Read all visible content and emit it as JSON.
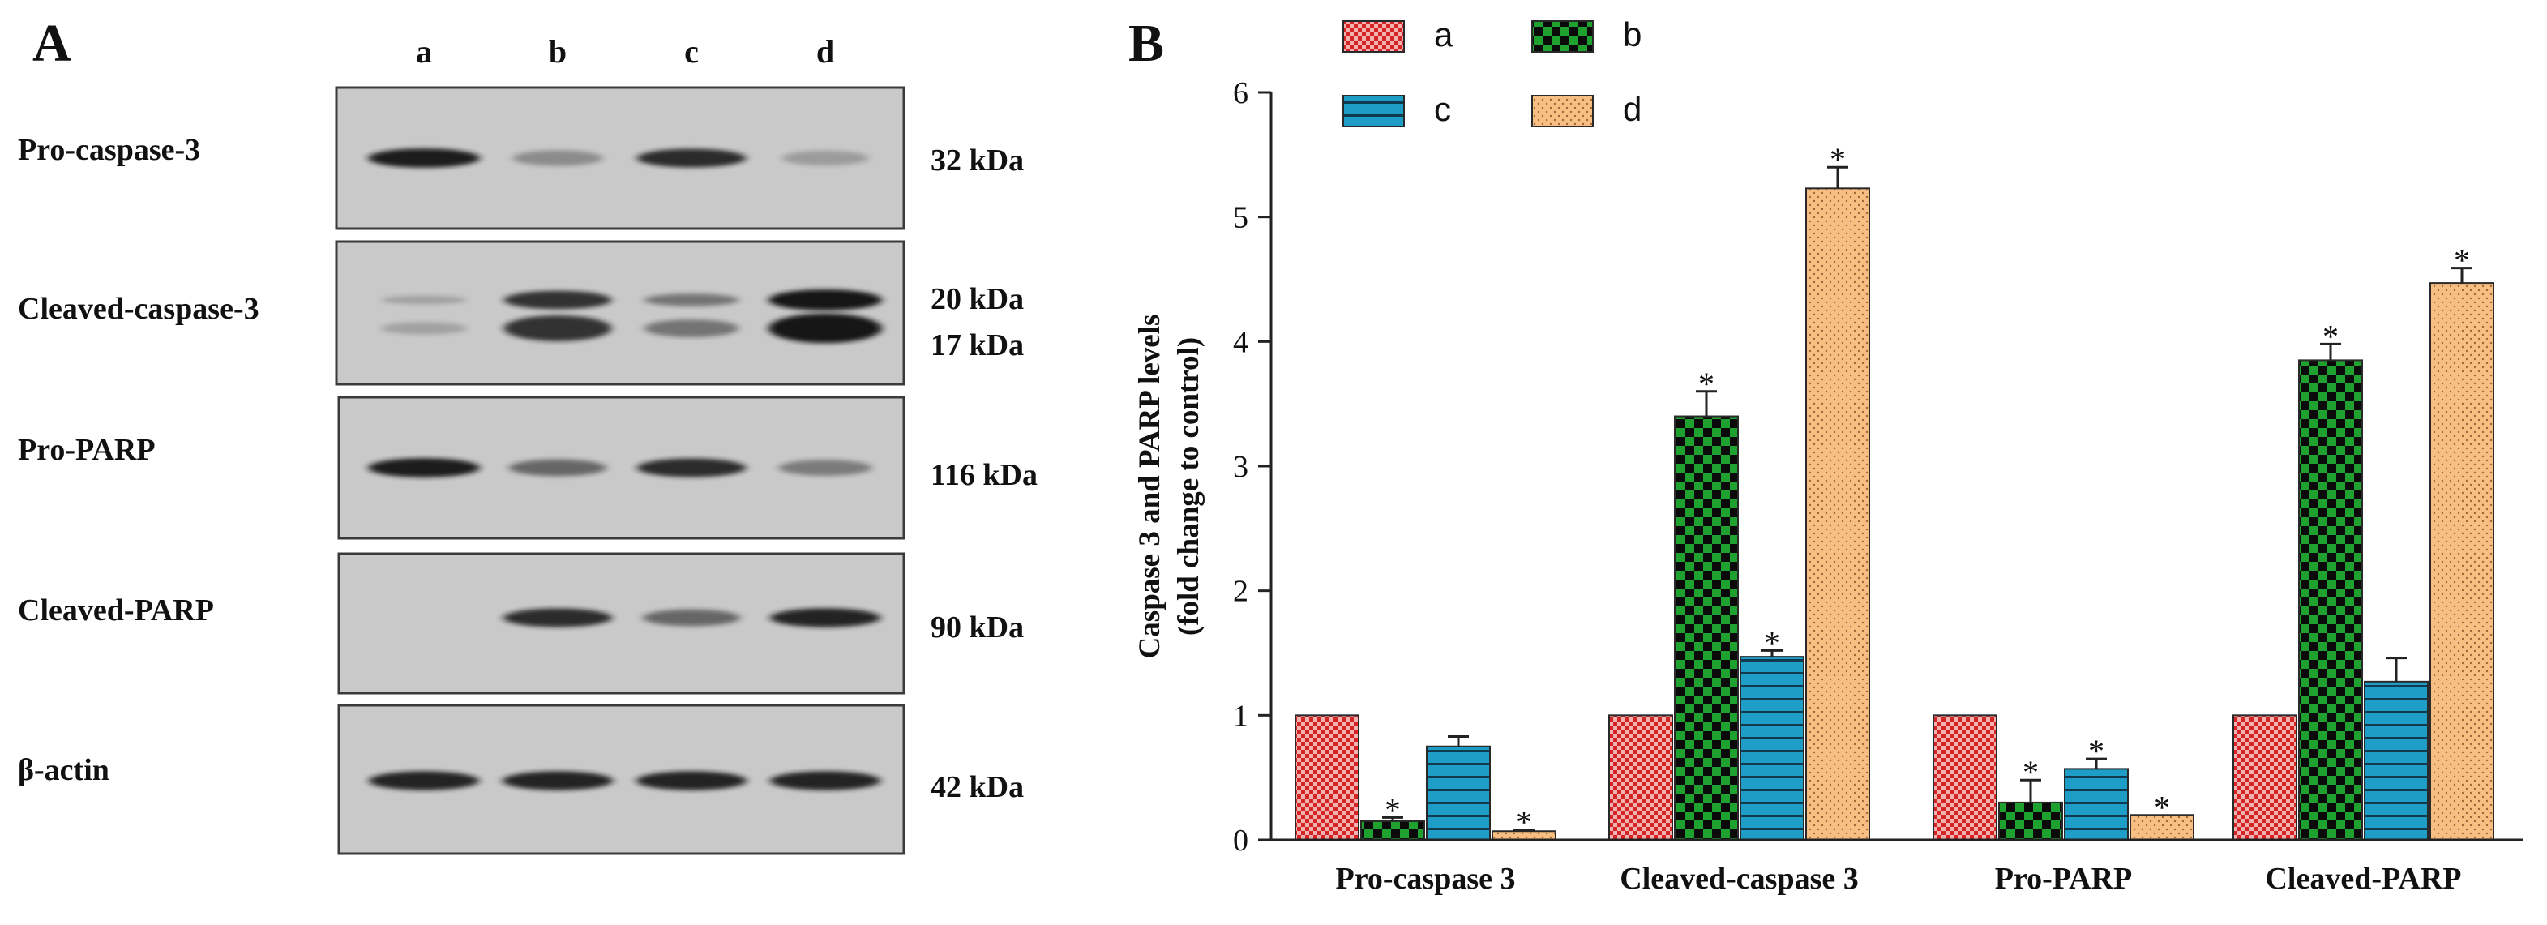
{
  "panel_a": {
    "label": "A",
    "lane_labels": [
      "a",
      "b",
      "c",
      "d"
    ],
    "blots": [
      {
        "name": "Pro-caspase-3",
        "kda": [
          "32 kDa"
        ],
        "band_intensity": [
          0.95,
          0.2,
          0.85,
          0.08
        ]
      },
      {
        "name": "Cleaved-caspase-3",
        "kda": [
          "20 kDa",
          "17 kDa"
        ],
        "band_intensity": [
          0.05,
          0.8,
          0.35,
          1.0
        ]
      },
      {
        "name": "Pro-PARP",
        "kda": [
          "116 kDa"
        ],
        "band_intensity": [
          0.95,
          0.45,
          0.85,
          0.3
        ]
      },
      {
        "name": "Cleaved-PARP",
        "kda": [
          "90 kDa"
        ],
        "band_intensity": [
          0.0,
          0.85,
          0.45,
          0.9
        ]
      },
      {
        "name": "β-actin",
        "kda": [
          "42 kDa"
        ],
        "band_intensity": [
          0.9,
          0.9,
          0.9,
          0.9
        ]
      }
    ]
  },
  "chart_data": {
    "type": "bar",
    "panel_label": "B",
    "title": "",
    "xlabel": "",
    "ylabel": [
      "Caspase 3 and PARP levels",
      "(fold change to control)"
    ],
    "ylim": [
      0,
      6
    ],
    "yticks": [
      0,
      1,
      2,
      3,
      4,
      5,
      6
    ],
    "categories": [
      "Pro-caspase 3",
      "Cleaved-caspase 3",
      "Pro-PARP",
      "Cleaved-PARP"
    ],
    "series": [
      {
        "name": "a",
        "values": [
          1.0,
          1.0,
          1.0,
          1.0
        ],
        "errors": [
          0.0,
          0.0,
          0.0,
          0.0
        ],
        "significant": [
          false,
          false,
          false,
          false
        ],
        "color": "#e03c3c",
        "pattern": "small checker"
      },
      {
        "name": "b",
        "values": [
          0.15,
          3.4,
          0.3,
          3.85
        ],
        "errors": [
          0.03,
          0.2,
          0.18,
          0.13
        ],
        "significant": [
          true,
          true,
          true,
          true
        ],
        "color": "#1fa12f",
        "pattern": "large checker"
      },
      {
        "name": "c",
        "values": [
          0.75,
          1.47,
          0.57,
          1.27
        ],
        "errors": [
          0.08,
          0.05,
          0.08,
          0.19
        ],
        "significant": [
          false,
          true,
          true,
          false
        ],
        "color": "#1e9dc7",
        "pattern": "horizontal stripes"
      },
      {
        "name": "d",
        "values": [
          0.07,
          5.23,
          0.2,
          4.47
        ],
        "errors": [
          0.01,
          0.17,
          0.0,
          0.12
        ],
        "significant": [
          true,
          true,
          true,
          true
        ],
        "color": "#f6b877",
        "pattern": "dots"
      }
    ],
    "significance_marker": "*",
    "legend": {
      "placement": "top",
      "entries": [
        "a",
        "b",
        "c",
        "d"
      ]
    }
  }
}
